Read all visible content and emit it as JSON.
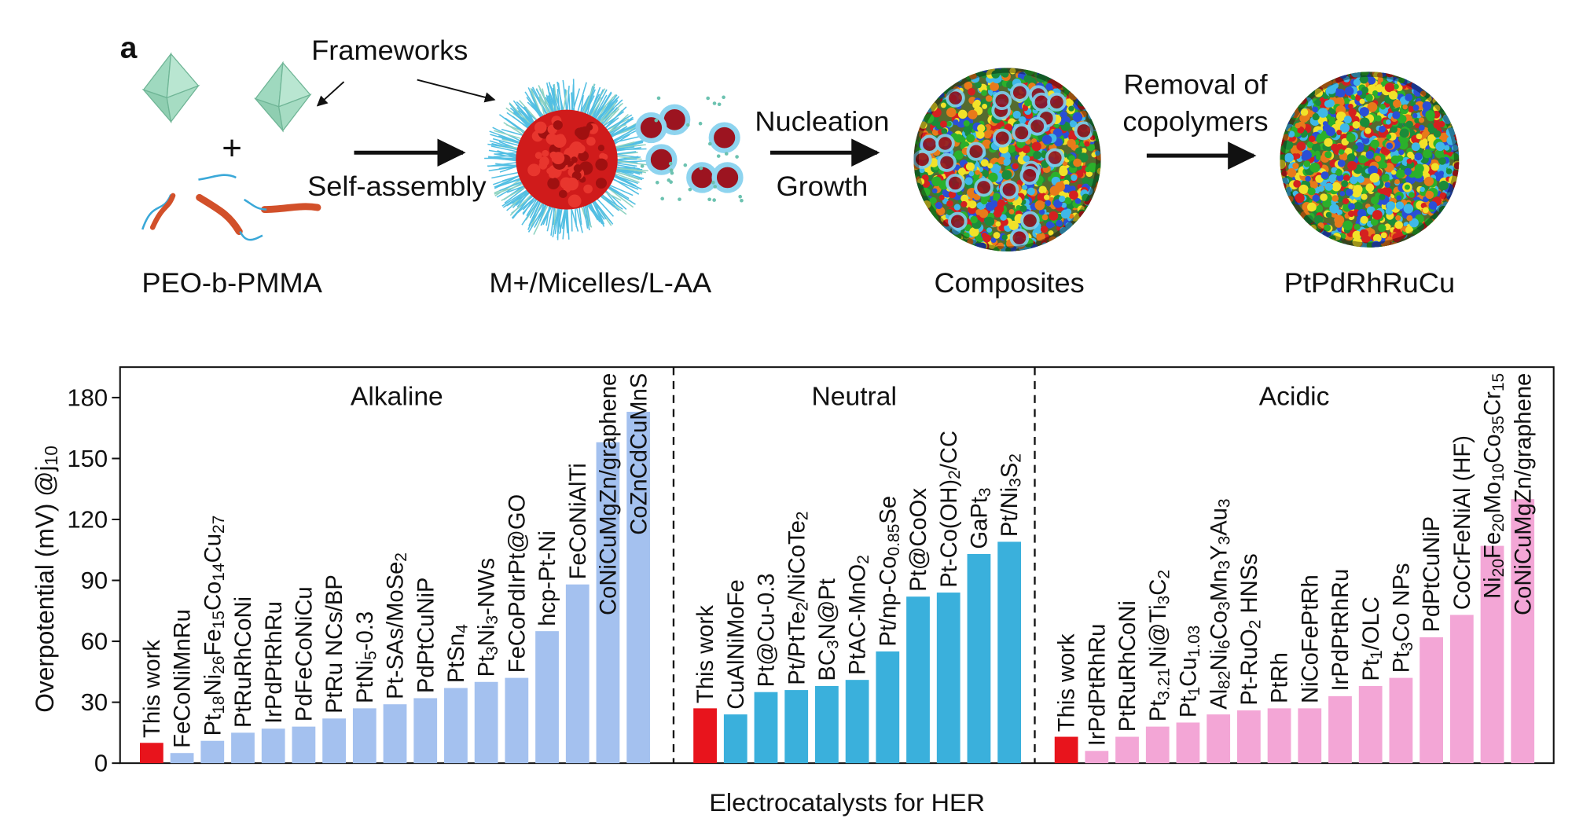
{
  "schematic": {
    "panel": "a",
    "frameworks": "Frameworks",
    "plus": "+",
    "self_assembly": "Self-assembly",
    "copolymer": "PEO-b-PMMA",
    "micelles": "M+/Micelles/L-AA",
    "nucleation": "Nucleation",
    "growth": "Growth",
    "composites": "Composites",
    "removal_1": "Removal of",
    "removal_2": "copolymers",
    "product": "PtPdRhRuCu"
  },
  "chart_data": {
    "type": "bar",
    "ylabel": "Overpotential (mV) @j10",
    "xlabel": "Electrocatalysts for HER",
    "ylim": [
      0,
      195
    ],
    "yticks": [
      0,
      30,
      60,
      90,
      120,
      150,
      180
    ],
    "groups": [
      {
        "name": "Alkaline",
        "color": "#a4c1ef",
        "categories": [
          "This work",
          "FeCoNiMnRu",
          "Pt18Ni26Fe15Co14Cu27",
          "PtRuRhCoNi",
          "IrPdPtRhRu",
          "PdFeCoNiCu",
          "PtRu NCs/BP",
          "PtNi5-0.3",
          "Pt-SAs/MoSe2",
          "PdPtCuNiP",
          "PtSn4",
          "Pt3Ni3-NWs",
          "FeCoPdIrPt@GO",
          "hcp-Pt-Ni",
          "FeCoNiAlTi",
          "CoNiCuMgZn/graphene",
          "CoZnCdCuMnS"
        ],
        "values": [
          10,
          5,
          11,
          15,
          17,
          18,
          22,
          27,
          29,
          32,
          37,
          40,
          42,
          65,
          88,
          158,
          173
        ],
        "colors": [
          "#e8141c",
          "#a4c1ef",
          "#a4c1ef",
          "#a4c1ef",
          "#a4c1ef",
          "#a4c1ef",
          "#a4c1ef",
          "#a4c1ef",
          "#a4c1ef",
          "#a4c1ef",
          "#a4c1ef",
          "#a4c1ef",
          "#a4c1ef",
          "#a4c1ef",
          "#a4c1ef",
          "#a4c1ef",
          "#a4c1ef"
        ],
        "label_colors": [
          "#e8141c",
          "#111111",
          "#111111",
          "#111111",
          "#111111",
          "#111111",
          "#111111",
          "#111111",
          "#111111",
          "#111111",
          "#111111",
          "#111111",
          "#111111",
          "#111111",
          "#111111",
          "#111111",
          "#111111"
        ]
      },
      {
        "name": "Neutral",
        "color": "#3ab0dc",
        "categories": [
          "This work",
          "CuAlNiMoFe",
          "Pt@Cu-0.3",
          "Pt/PtTe2/NiCoTe2",
          "BC3N@Pt",
          "PtAC-MnO2",
          "Pt/np-Co0.85Se",
          "Pt@CoOx",
          "Pt-Co(OH)2/CC",
          "GaPt3",
          "Pt/Ni3S2"
        ],
        "values": [
          27,
          24,
          35,
          36,
          38,
          41,
          55,
          82,
          84,
          103,
          109
        ],
        "colors": [
          "#e8141c",
          "#3ab0dc",
          "#3ab0dc",
          "#3ab0dc",
          "#3ab0dc",
          "#3ab0dc",
          "#3ab0dc",
          "#3ab0dc",
          "#3ab0dc",
          "#3ab0dc",
          "#3ab0dc"
        ],
        "label_colors": [
          "#e8141c",
          "#111111",
          "#111111",
          "#111111",
          "#111111",
          "#111111",
          "#111111",
          "#111111",
          "#111111",
          "#111111",
          "#111111"
        ]
      },
      {
        "name": "Acidic",
        "color": "#f3a6d6",
        "categories": [
          "This work",
          "IrPdPtRhRu",
          "PtRuRhCoNi",
          "Pt3.21Ni@Ti3C2",
          "Pt1Cu1.03",
          "Al82Ni6Co3Mn3Y3Au3",
          "Pt-RuO2 HNSs",
          "PtRh",
          "NiCoFePtRh",
          "IrPdPtRhRu",
          "Pt1/OLC",
          "Pt3Co NPs",
          "PdPtCuNiP",
          "CoCrFeNiAl (HF)",
          "Ni20Fe20Mo10Co35Cr15",
          "CoNiCuMgZn/graphene"
        ],
        "values": [
          13,
          6,
          13,
          18,
          20,
          24,
          26,
          27,
          27,
          33,
          38,
          42,
          62,
          73,
          107,
          130
        ],
        "colors": [
          "#e8141c",
          "#f3a6d6",
          "#f3a6d6",
          "#f3a6d6",
          "#f3a6d6",
          "#f3a6d6",
          "#f3a6d6",
          "#f3a6d6",
          "#f3a6d6",
          "#f3a6d6",
          "#f3a6d6",
          "#f3a6d6",
          "#f3a6d6",
          "#f3a6d6",
          "#f3a6d6",
          "#f3a6d6"
        ],
        "label_colors": [
          "#e8141c",
          "#111111",
          "#111111",
          "#111111",
          "#111111",
          "#111111",
          "#111111",
          "#111111",
          "#111111",
          "#111111",
          "#111111",
          "#111111",
          "#111111",
          "#111111",
          "#111111",
          "#111111"
        ]
      }
    ]
  }
}
